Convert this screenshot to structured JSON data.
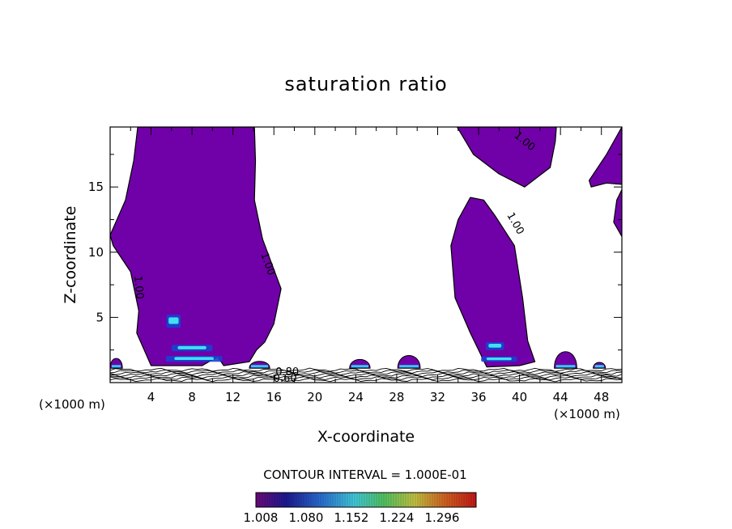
{
  "chart_data": {
    "type": "heatmap",
    "title": "saturation ratio",
    "xlabel": "X-coordinate",
    "ylabel": "Z-coordinate",
    "x_unit_left": "(×1000 m)",
    "x_unit_right": "(×1000 m)",
    "xlim": [
      0,
      50
    ],
    "ylim": [
      0,
      19.6
    ],
    "x_ticks": [
      4,
      8,
      12,
      16,
      20,
      24,
      28,
      32,
      36,
      40,
      44,
      48
    ],
    "y_ticks": [
      5,
      10,
      15
    ],
    "contour_interval_text": "CONTOUR INTERVAL = 1.000E-01",
    "contour_labels": [
      {
        "text": "1.00",
        "x": 2.8,
        "y": 7.3,
        "angle": 85
      },
      {
        "text": "1.00",
        "x": 15.4,
        "y": 9.1,
        "angle": 70
      },
      {
        "text": "1.00",
        "x": 40.5,
        "y": 18.5,
        "angle": 40
      },
      {
        "text": "1.00",
        "x": 39.6,
        "y": 12.2,
        "angle": 60
      },
      {
        "text": "0.80",
        "x": 17.3,
        "y": 0.8,
        "angle": 0
      },
      {
        "text": "0.60",
        "x": 17.1,
        "y": 0.3,
        "angle": 0
      }
    ],
    "colorbar": {
      "min": 1.008,
      "max": 1.296,
      "tick_labels": [
        "1.008",
        "1.080",
        "1.152",
        "1.224",
        "1.296"
      ]
    },
    "supersaturated_regions": [
      {
        "name": "left plume",
        "points": [
          [
            0,
            11.3
          ],
          [
            1.5,
            14
          ],
          [
            2.3,
            17
          ],
          [
            2.7,
            19.6
          ],
          [
            14.1,
            19.6
          ],
          [
            14.2,
            17
          ],
          [
            14.1,
            14
          ],
          [
            14.9,
            11
          ],
          [
            16.7,
            7.2
          ],
          [
            16.0,
            4.5
          ],
          [
            15.1,
            3.1
          ],
          [
            14.3,
            2.5
          ],
          [
            13.6,
            1.6
          ],
          [
            11.1,
            1.3
          ],
          [
            10.5,
            2.0
          ],
          [
            9.0,
            1.3
          ],
          [
            4.0,
            1.3
          ],
          [
            2.6,
            3.8
          ],
          [
            2.8,
            5.5
          ],
          [
            2.0,
            8.5
          ],
          [
            0.3,
            10.5
          ]
        ]
      },
      {
        "name": "upper-right dome",
        "points": [
          [
            33.9,
            19.6
          ],
          [
            43.6,
            19.6
          ],
          [
            43.5,
            18.5
          ],
          [
            43.0,
            16.5
          ],
          [
            40.5,
            15
          ],
          [
            38.0,
            16
          ],
          [
            35.5,
            17.5
          ]
        ]
      },
      {
        "name": "right plume",
        "points": [
          [
            36.8,
            1.2
          ],
          [
            35.2,
            3.8
          ],
          [
            33.7,
            6.5
          ],
          [
            33.3,
            10.5
          ],
          [
            34.0,
            12.5
          ],
          [
            35.2,
            14.2
          ],
          [
            36.5,
            14.0
          ],
          [
            37.6,
            12.8
          ],
          [
            39.5,
            10.5
          ],
          [
            40.3,
            6.5
          ],
          [
            40.8,
            3.2
          ],
          [
            41.5,
            1.6
          ],
          [
            40.0,
            1.3
          ]
        ]
      },
      {
        "name": "top-right corner",
        "points": [
          [
            46.8,
            15.5
          ],
          [
            48.5,
            17.5
          ],
          [
            50,
            19.6
          ],
          [
            50,
            15.2
          ],
          [
            48.5,
            15.3
          ],
          [
            47.0,
            15.0
          ]
        ]
      },
      {
        "name": "right edge blob",
        "points": [
          [
            50,
            11.2
          ],
          [
            49.2,
            12.3
          ],
          [
            49.5,
            14.0
          ],
          [
            50,
            14.8
          ]
        ]
      }
    ],
    "low_level_blobs": [
      {
        "x": 0.6,
        "w": 1.2,
        "h": 1.0
      },
      {
        "x": 14.6,
        "w": 2.0,
        "h": 0.7
      },
      {
        "x": 24.4,
        "w": 2.0,
        "h": 0.9
      },
      {
        "x": 29.2,
        "w": 2.2,
        "h": 1.3
      },
      {
        "x": 44.5,
        "w": 2.2,
        "h": 1.7
      },
      {
        "x": 47.8,
        "w": 1.2,
        "h": 0.6
      }
    ],
    "bright_cells": [
      {
        "x": 8.2,
        "y": 1.6,
        "w": 5.5,
        "h": 0.45
      },
      {
        "x": 8.0,
        "y": 2.4,
        "w": 4.0,
        "h": 0.5
      },
      {
        "x": 6.2,
        "y": 4.2,
        "w": 1.4,
        "h": 1.0
      },
      {
        "x": 38.0,
        "y": 1.6,
        "w": 3.5,
        "h": 0.4
      },
      {
        "x": 37.6,
        "y": 2.5,
        "w": 1.8,
        "h": 0.6
      }
    ]
  }
}
